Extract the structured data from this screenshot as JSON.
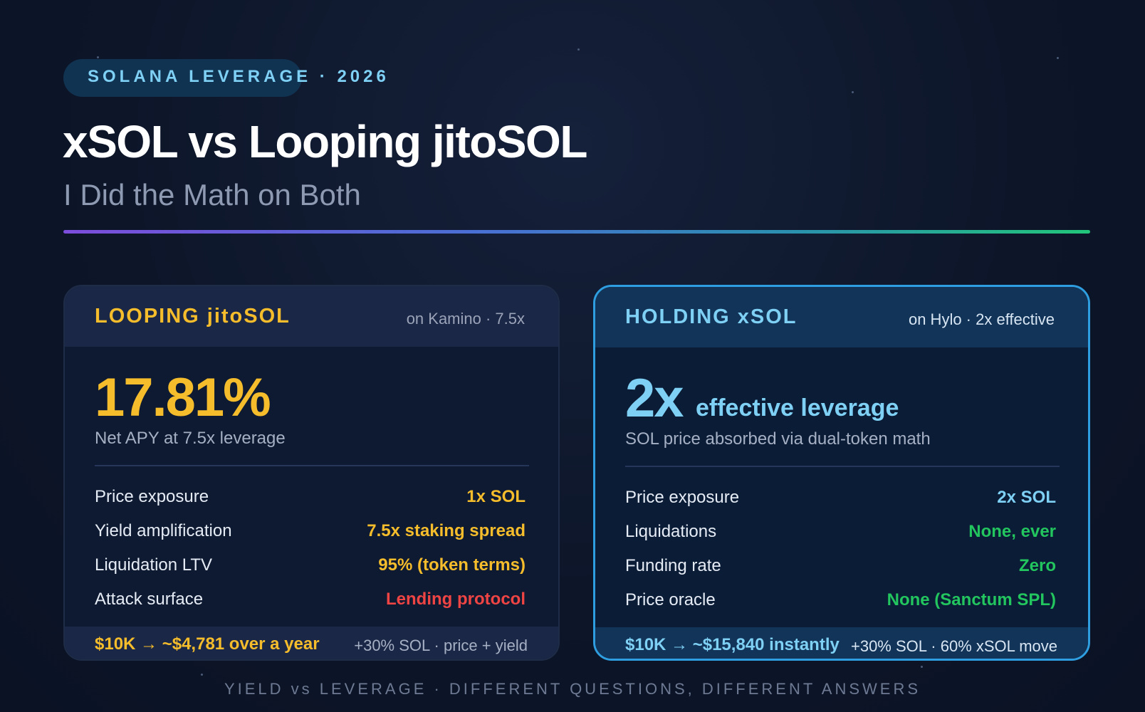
{
  "header": {
    "badge": "SOLANA LEVERAGE · 2026",
    "title": "xSOL vs Looping jitoSOL",
    "subtitle": "I Did the Math on Both"
  },
  "colors": {
    "gold": "#f5bd2c",
    "sky": "#7fd0f5",
    "green": "#22c55e",
    "red": "#ef4444",
    "accent_border": "#2f9ee0"
  },
  "cards": [
    {
      "title": "LOOPING jitoSOL",
      "subtitle": "on Kamino · 7.5x",
      "big_value": "17.81%",
      "big_suffix": "",
      "caption": "Net APY at 7.5x leverage",
      "rows": [
        {
          "label": "Price exposure",
          "value": "1x SOL",
          "color": "#f5bd2c"
        },
        {
          "label": "Yield amplification",
          "value": "7.5x staking spread",
          "color": "#f5bd2c"
        },
        {
          "label": "Liquidation LTV",
          "value": "95% (token terms)",
          "color": "#f5bd2c"
        },
        {
          "label": "Attack surface",
          "value": "Lending protocol",
          "color": "#ef4444"
        }
      ],
      "footer_main": "$10K → ~$4,781 over a year",
      "footer_sub": "+30% SOL · price + yield"
    },
    {
      "title": "HOLDING xSOL",
      "subtitle": "on Hylo · 2x effective",
      "big_value": "2x",
      "big_suffix": "effective leverage",
      "caption": "SOL price absorbed via dual-token math",
      "rows": [
        {
          "label": "Price exposure",
          "value": "2x SOL",
          "color": "#7fd0f5"
        },
        {
          "label": "Liquidations",
          "value": "None, ever",
          "color": "#22c55e"
        },
        {
          "label": "Funding rate",
          "value": "Zero",
          "color": "#22c55e"
        },
        {
          "label": "Price oracle",
          "value": "None (Sanctum SPL)",
          "color": "#22c55e"
        }
      ],
      "footer_main": "$10K → ~$15,840 instantly",
      "footer_sub": "+30% SOL · 60% xSOL move"
    }
  ],
  "bottom_caption": "YIELD vs LEVERAGE · DIFFERENT QUESTIONS, DIFFERENT ANSWERS"
}
